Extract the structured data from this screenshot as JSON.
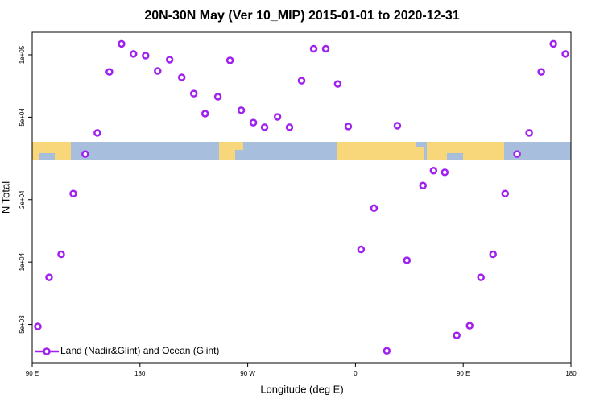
{
  "chart_data": {
    "type": "scatter",
    "title": "20N-30N May (Ver 10_MIP)   2015-01-01 to 2020-12-31",
    "x_label": "Longitude (deg E)",
    "y_label": "N Total",
    "log_y": true,
    "legend": "bottom-left",
    "xlim": [
      90,
      540
    ],
    "xticks": [
      {
        "value": 90,
        "label": "90 E"
      },
      {
        "value": 180,
        "label": "180"
      },
      {
        "value": 270,
        "label": "90 W"
      },
      {
        "value": 360,
        "label": "0"
      },
      {
        "value": 450,
        "label": "90 E"
      },
      {
        "value": 540,
        "label": "180"
      }
    ],
    "ylim": [
      3270,
      128500
    ],
    "yticks": [
      {
        "value": 5000,
        "label": "5e+03"
      },
      {
        "value": 10000,
        "label": "1e+04"
      },
      {
        "value": 20000,
        "label": "2e+04"
      },
      {
        "value": 50000,
        "label": "5e+04"
      },
      {
        "value": 100000,
        "label": "1e+05"
      }
    ],
    "series": [
      {
        "name": "Land (Nadir&Glint) and Ocean (Glint)",
        "color": "#a020f0",
        "x": [
          94.7,
          104.1,
          114.2,
          124.3,
          134.3,
          144.4,
          154.5,
          164.6,
          174.6,
          184.7,
          194.8,
          204.8,
          214.9,
          225.0,
          234.4,
          245.1,
          255.2,
          264.6,
          274.7,
          284.1,
          294.9,
          304.9,
          315.0,
          325.1,
          335.2,
          345.2,
          354.0,
          364.7,
          375.5,
          386.2,
          395.0,
          403.0,
          416.4,
          425.2,
          434.6,
          444.6,
          455.4,
          464.8,
          474.9,
          485.0,
          495.0,
          505.1,
          515.2,
          525.3,
          535.3
        ],
        "values": [
          4890,
          8440,
          10900,
          21400,
          33200,
          42000,
          82800,
          113000,
          101000,
          99100,
          83600,
          94800,
          77800,
          65000,
          52000,
          62800,
          94000,
          54000,
          47100,
          44700,
          50200,
          44700,
          75000,
          107000,
          107000,
          72400,
          45100,
          11500,
          18200,
          3730,
          45500,
          10200,
          23400,
          27600,
          27100,
          4430,
          4930,
          8440,
          10900,
          21400,
          33200,
          42000,
          82800,
          113000,
          101000
        ]
      }
    ]
  }
}
